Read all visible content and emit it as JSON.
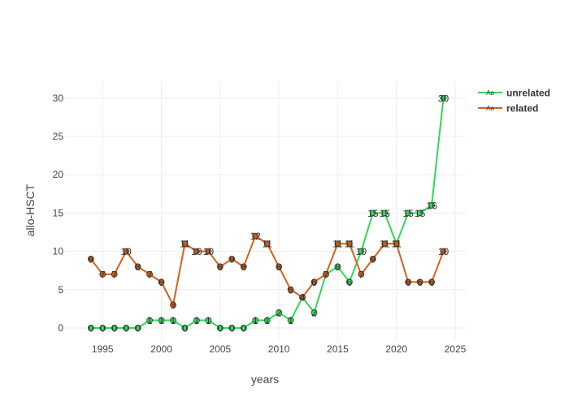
{
  "chart_data": {
    "type": "line",
    "xlabel": "years",
    "ylabel": "allo-HSCT",
    "xlim": [
      1991.8,
      2025.9
    ],
    "ylim": [
      -1.7,
      32.2
    ],
    "xticks": [
      1995,
      2000,
      2005,
      2010,
      2015,
      2020,
      2025
    ],
    "yticks": [
      0,
      5,
      10,
      15,
      20,
      25,
      30
    ],
    "grid": true,
    "legend_position": "top-right",
    "x": [
      1994,
      1995,
      1996,
      1997,
      1998,
      1999,
      2000,
      2001,
      2002,
      2003,
      2004,
      2005,
      2006,
      2007,
      2008,
      2009,
      2010,
      2011,
      2012,
      2013,
      2014,
      2015,
      2016,
      2017,
      2018,
      2019,
      2020,
      2021,
      2022,
      2023,
      2024
    ],
    "series": [
      {
        "name": "unrelated",
        "color": "#2ed957",
        "marker_color": "#2ed957",
        "values": [
          0,
          0,
          0,
          0,
          0,
          1,
          1,
          1,
          0,
          1,
          1,
          0,
          0,
          0,
          1,
          1,
          2,
          1,
          4,
          2,
          7,
          8,
          6,
          10,
          15,
          15,
          11,
          15,
          15,
          16,
          30
        ]
      },
      {
        "name": "related",
        "color": "#d9601a",
        "marker_color": "#c05a1a",
        "values": [
          9,
          7,
          7,
          10,
          8,
          7,
          6,
          3,
          11,
          10,
          10,
          8,
          9,
          8,
          12,
          11,
          8,
          5,
          4,
          6,
          7,
          11,
          11,
          7,
          9,
          11,
          11,
          6,
          6,
          6,
          10
        ]
      }
    ],
    "legend_marker_text": "Aa"
  }
}
